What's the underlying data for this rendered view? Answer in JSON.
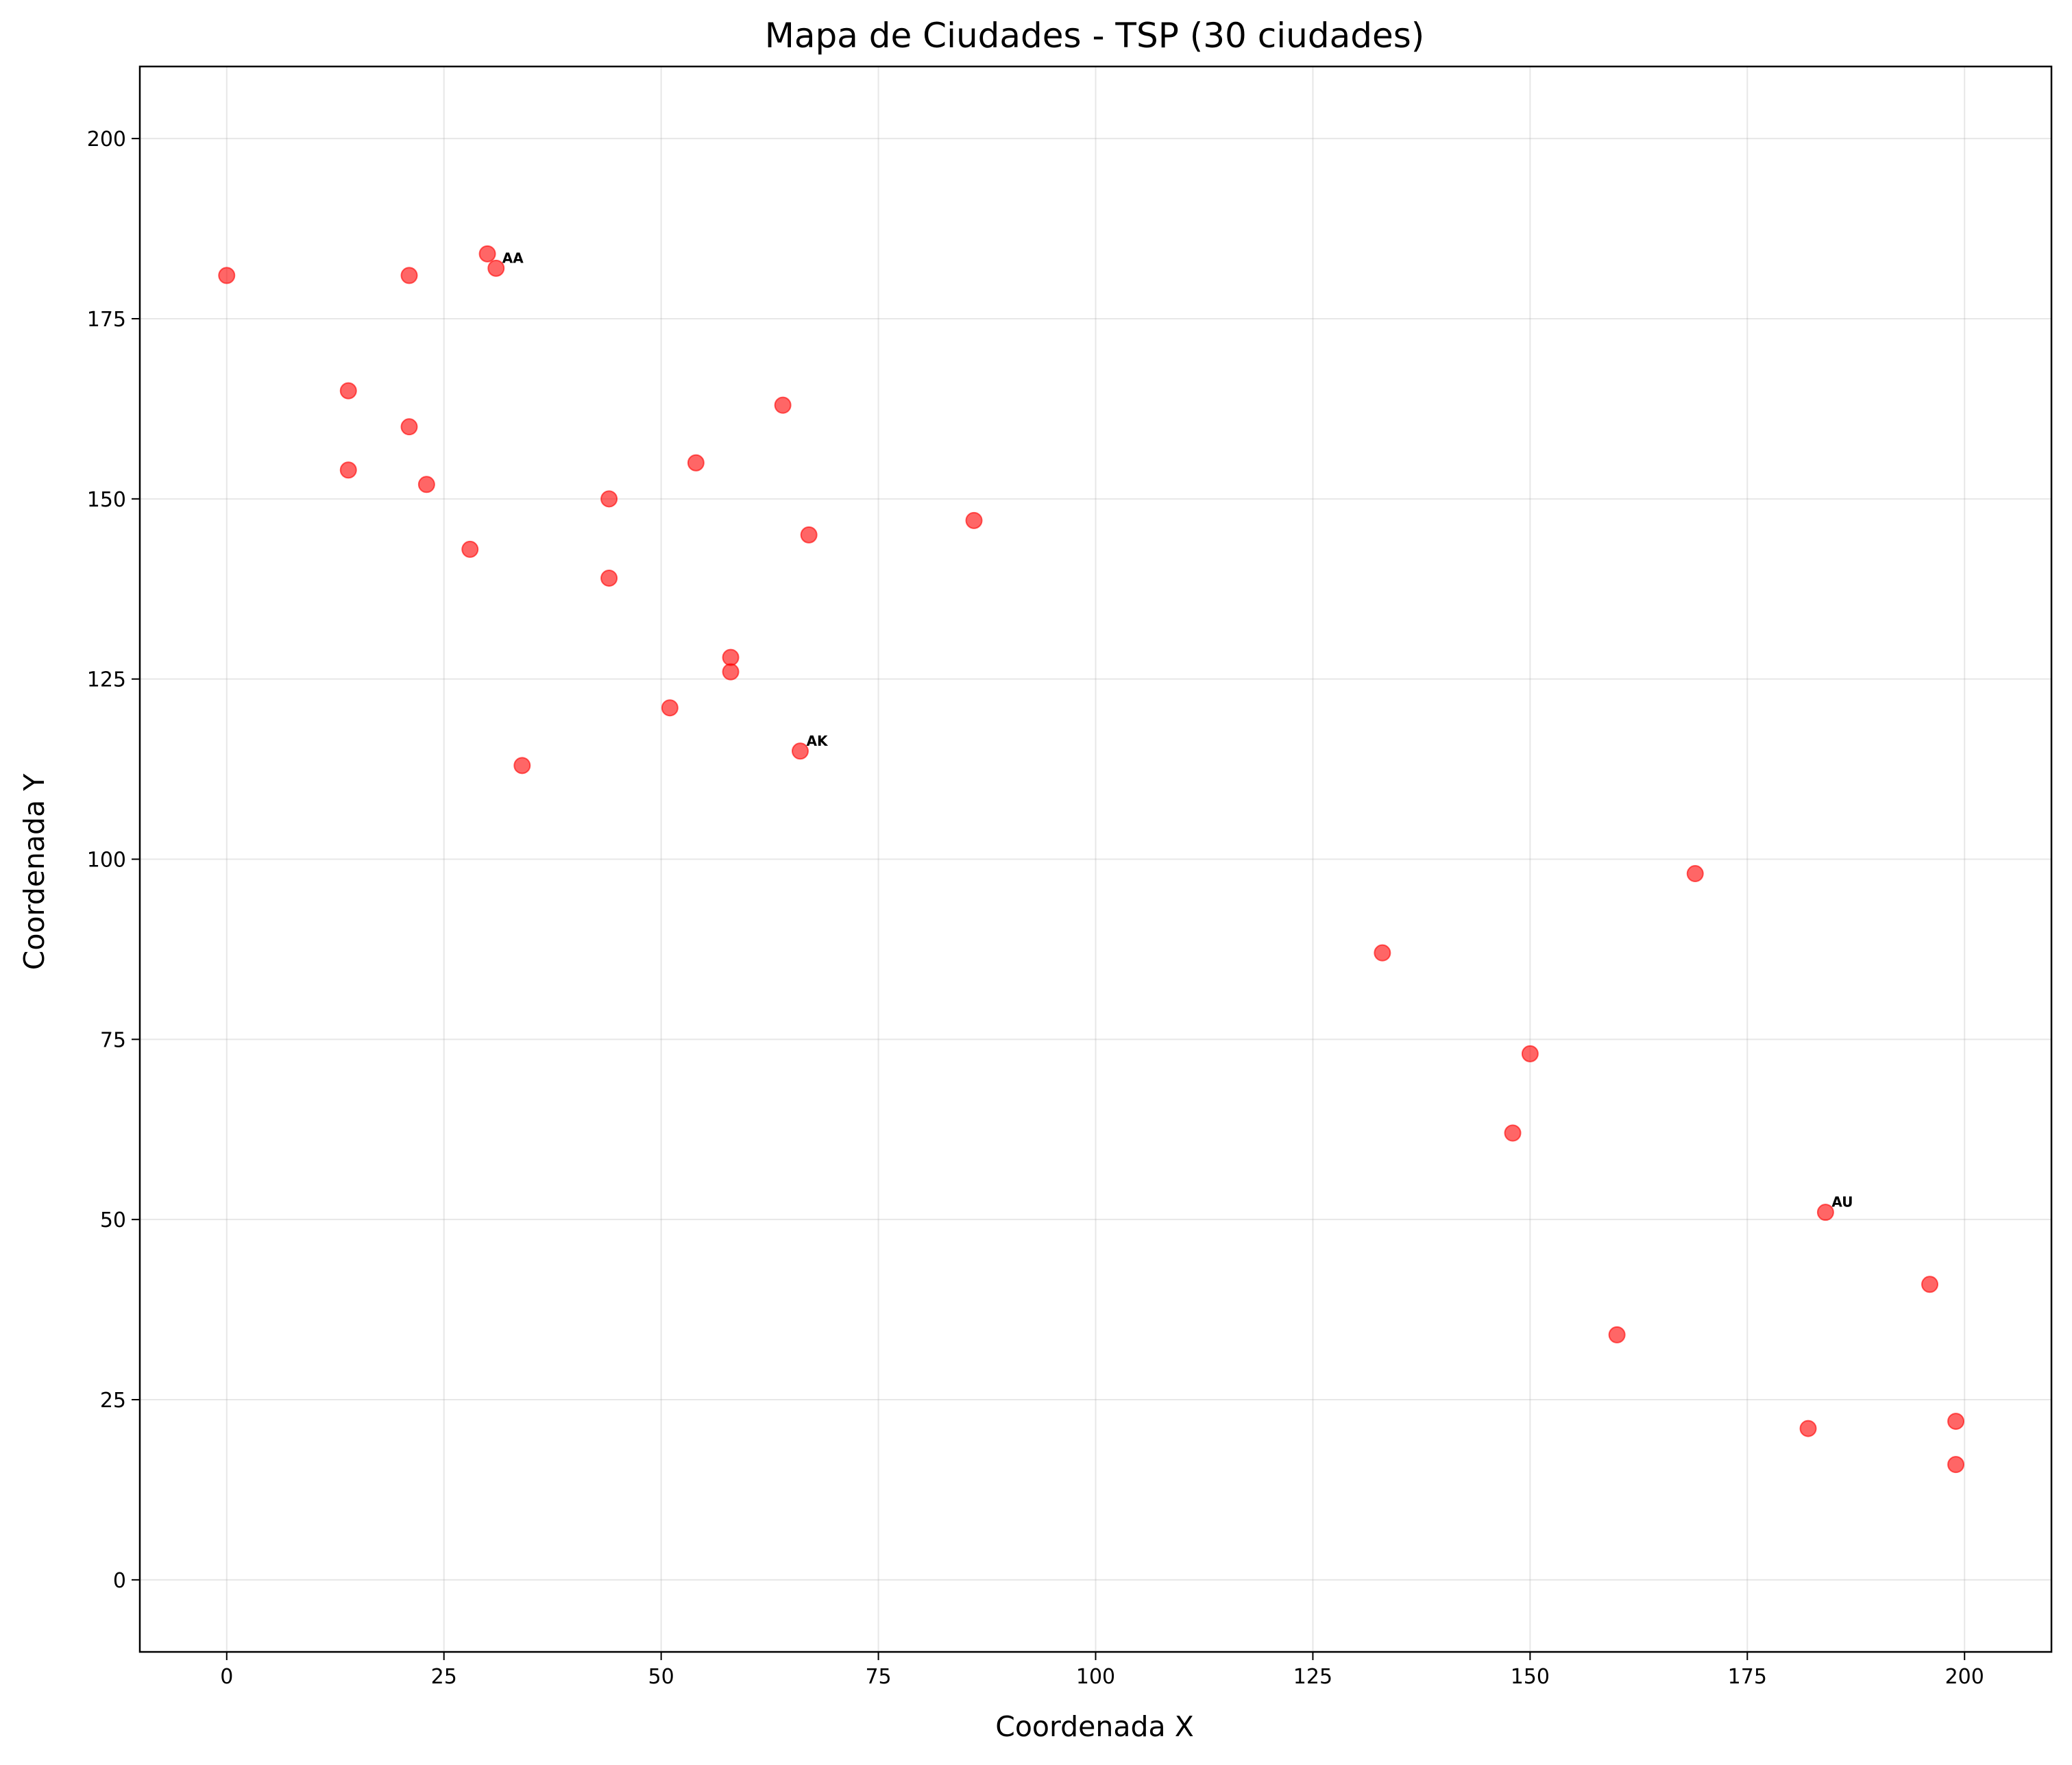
{
  "chart_data": {
    "type": "scatter",
    "title": "Mapa de Ciudades - TSP (30 ciudades)",
    "xlabel": "Coordenada X",
    "ylabel": "Coordenada Y",
    "xlim": [
      -10,
      210
    ],
    "ylim": [
      -10,
      210
    ],
    "xticks": [
      0,
      25,
      50,
      75,
      100,
      125,
      150,
      175,
      200
    ],
    "yticks": [
      0,
      25,
      50,
      75,
      100,
      125,
      150,
      175,
      200
    ],
    "grid": true,
    "marker_color": "#ff0000",
    "points": [
      {
        "x": 0,
        "y": 181
      },
      {
        "x": 21,
        "y": 181
      },
      {
        "x": 30,
        "y": 184
      },
      {
        "x": 31,
        "y": 182,
        "label": "AA"
      },
      {
        "x": 14,
        "y": 165
      },
      {
        "x": 21,
        "y": 160
      },
      {
        "x": 14,
        "y": 154
      },
      {
        "x": 23,
        "y": 152
      },
      {
        "x": 28,
        "y": 143
      },
      {
        "x": 44,
        "y": 150
      },
      {
        "x": 44,
        "y": 139
      },
      {
        "x": 54,
        "y": 155
      },
      {
        "x": 64,
        "y": 163
      },
      {
        "x": 67,
        "y": 145
      },
      {
        "x": 86,
        "y": 147
      },
      {
        "x": 58,
        "y": 128
      },
      {
        "x": 58,
        "y": 126
      },
      {
        "x": 51,
        "y": 121
      },
      {
        "x": 66,
        "y": 115,
        "label": "AK"
      },
      {
        "x": 34,
        "y": 113
      },
      {
        "x": 169,
        "y": 98
      },
      {
        "x": 133,
        "y": 87
      },
      {
        "x": 150,
        "y": 73
      },
      {
        "x": 148,
        "y": 62
      },
      {
        "x": 184,
        "y": 51,
        "label": "AU"
      },
      {
        "x": 196,
        "y": 41
      },
      {
        "x": 160,
        "y": 34
      },
      {
        "x": 199,
        "y": 22
      },
      {
        "x": 182,
        "y": 21
      },
      {
        "x": 199,
        "y": 16
      }
    ]
  }
}
